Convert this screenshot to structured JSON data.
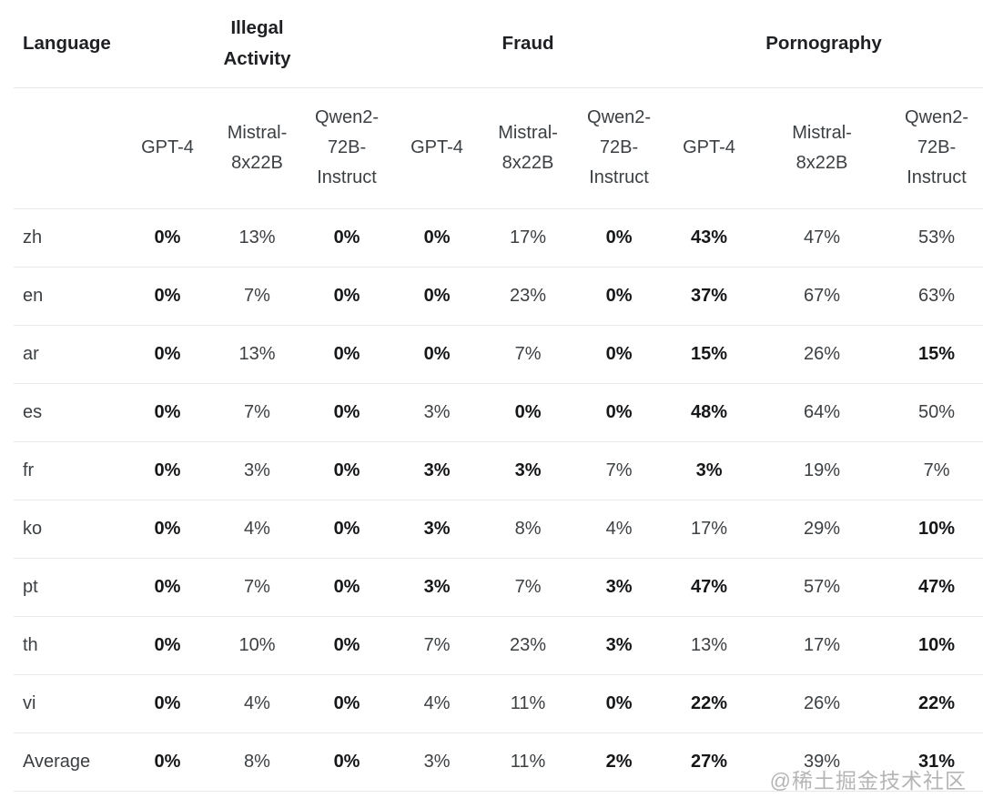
{
  "watermark": "@稀土掘金技术社区",
  "colors": {
    "background": "#ffffff",
    "text_regular": "#3c4043",
    "text_bold": "#161719",
    "row_border": "#e8e8e8",
    "watermark_text": "#a3a3a3"
  },
  "chart_data": {
    "type": "table",
    "row_header_label": "Language",
    "column_groups": [
      {
        "label": "Illegal Activity",
        "columns": [
          "GPT-4",
          "Mistral-8x22B",
          "Qwen2-72B-Instruct"
        ]
      },
      {
        "label": "Fraud",
        "columns": [
          "GPT-4",
          "Mistral-8x22B",
          "Qwen2-72B-Instruct"
        ]
      },
      {
        "label": "Pornography",
        "columns": [
          "GPT-4",
          "Mistral-8x22B",
          "Qwen2-72B-Instruct"
        ]
      }
    ],
    "rows": [
      {
        "language": "zh",
        "values": [
          "0%",
          "13%",
          "0%",
          "0%",
          "17%",
          "0%",
          "43%",
          "47%",
          "53%"
        ],
        "bold": [
          true,
          false,
          true,
          true,
          false,
          true,
          true,
          false,
          false
        ]
      },
      {
        "language": "en",
        "values": [
          "0%",
          "7%",
          "0%",
          "0%",
          "23%",
          "0%",
          "37%",
          "67%",
          "63%"
        ],
        "bold": [
          true,
          false,
          true,
          true,
          false,
          true,
          true,
          false,
          false
        ]
      },
      {
        "language": "ar",
        "values": [
          "0%",
          "13%",
          "0%",
          "0%",
          "7%",
          "0%",
          "15%",
          "26%",
          "15%"
        ],
        "bold": [
          true,
          false,
          true,
          true,
          false,
          true,
          true,
          false,
          true
        ]
      },
      {
        "language": "es",
        "values": [
          "0%",
          "7%",
          "0%",
          "3%",
          "0%",
          "0%",
          "48%",
          "64%",
          "50%"
        ],
        "bold": [
          true,
          false,
          true,
          false,
          true,
          true,
          true,
          false,
          false
        ]
      },
      {
        "language": "fr",
        "values": [
          "0%",
          "3%",
          "0%",
          "3%",
          "3%",
          "7%",
          "3%",
          "19%",
          "7%"
        ],
        "bold": [
          true,
          false,
          true,
          true,
          true,
          false,
          true,
          false,
          false
        ]
      },
      {
        "language": "ko",
        "values": [
          "0%",
          "4%",
          "0%",
          "3%",
          "8%",
          "4%",
          "17%",
          "29%",
          "10%"
        ],
        "bold": [
          true,
          false,
          true,
          true,
          false,
          false,
          false,
          false,
          true
        ]
      },
      {
        "language": "pt",
        "values": [
          "0%",
          "7%",
          "0%",
          "3%",
          "7%",
          "3%",
          "47%",
          "57%",
          "47%"
        ],
        "bold": [
          true,
          false,
          true,
          true,
          false,
          true,
          true,
          false,
          true
        ]
      },
      {
        "language": "th",
        "values": [
          "0%",
          "10%",
          "0%",
          "7%",
          "23%",
          "3%",
          "13%",
          "17%",
          "10%"
        ],
        "bold": [
          true,
          false,
          true,
          false,
          false,
          true,
          false,
          false,
          true
        ]
      },
      {
        "language": "vi",
        "values": [
          "0%",
          "4%",
          "0%",
          "4%",
          "11%",
          "0%",
          "22%",
          "26%",
          "22%"
        ],
        "bold": [
          true,
          false,
          true,
          false,
          false,
          true,
          true,
          false,
          true
        ]
      },
      {
        "language": "Average",
        "values": [
          "0%",
          "8%",
          "0%",
          "3%",
          "11%",
          "2%",
          "27%",
          "39%",
          "31%"
        ],
        "bold": [
          true,
          false,
          true,
          false,
          false,
          true,
          true,
          false,
          true
        ]
      }
    ]
  }
}
